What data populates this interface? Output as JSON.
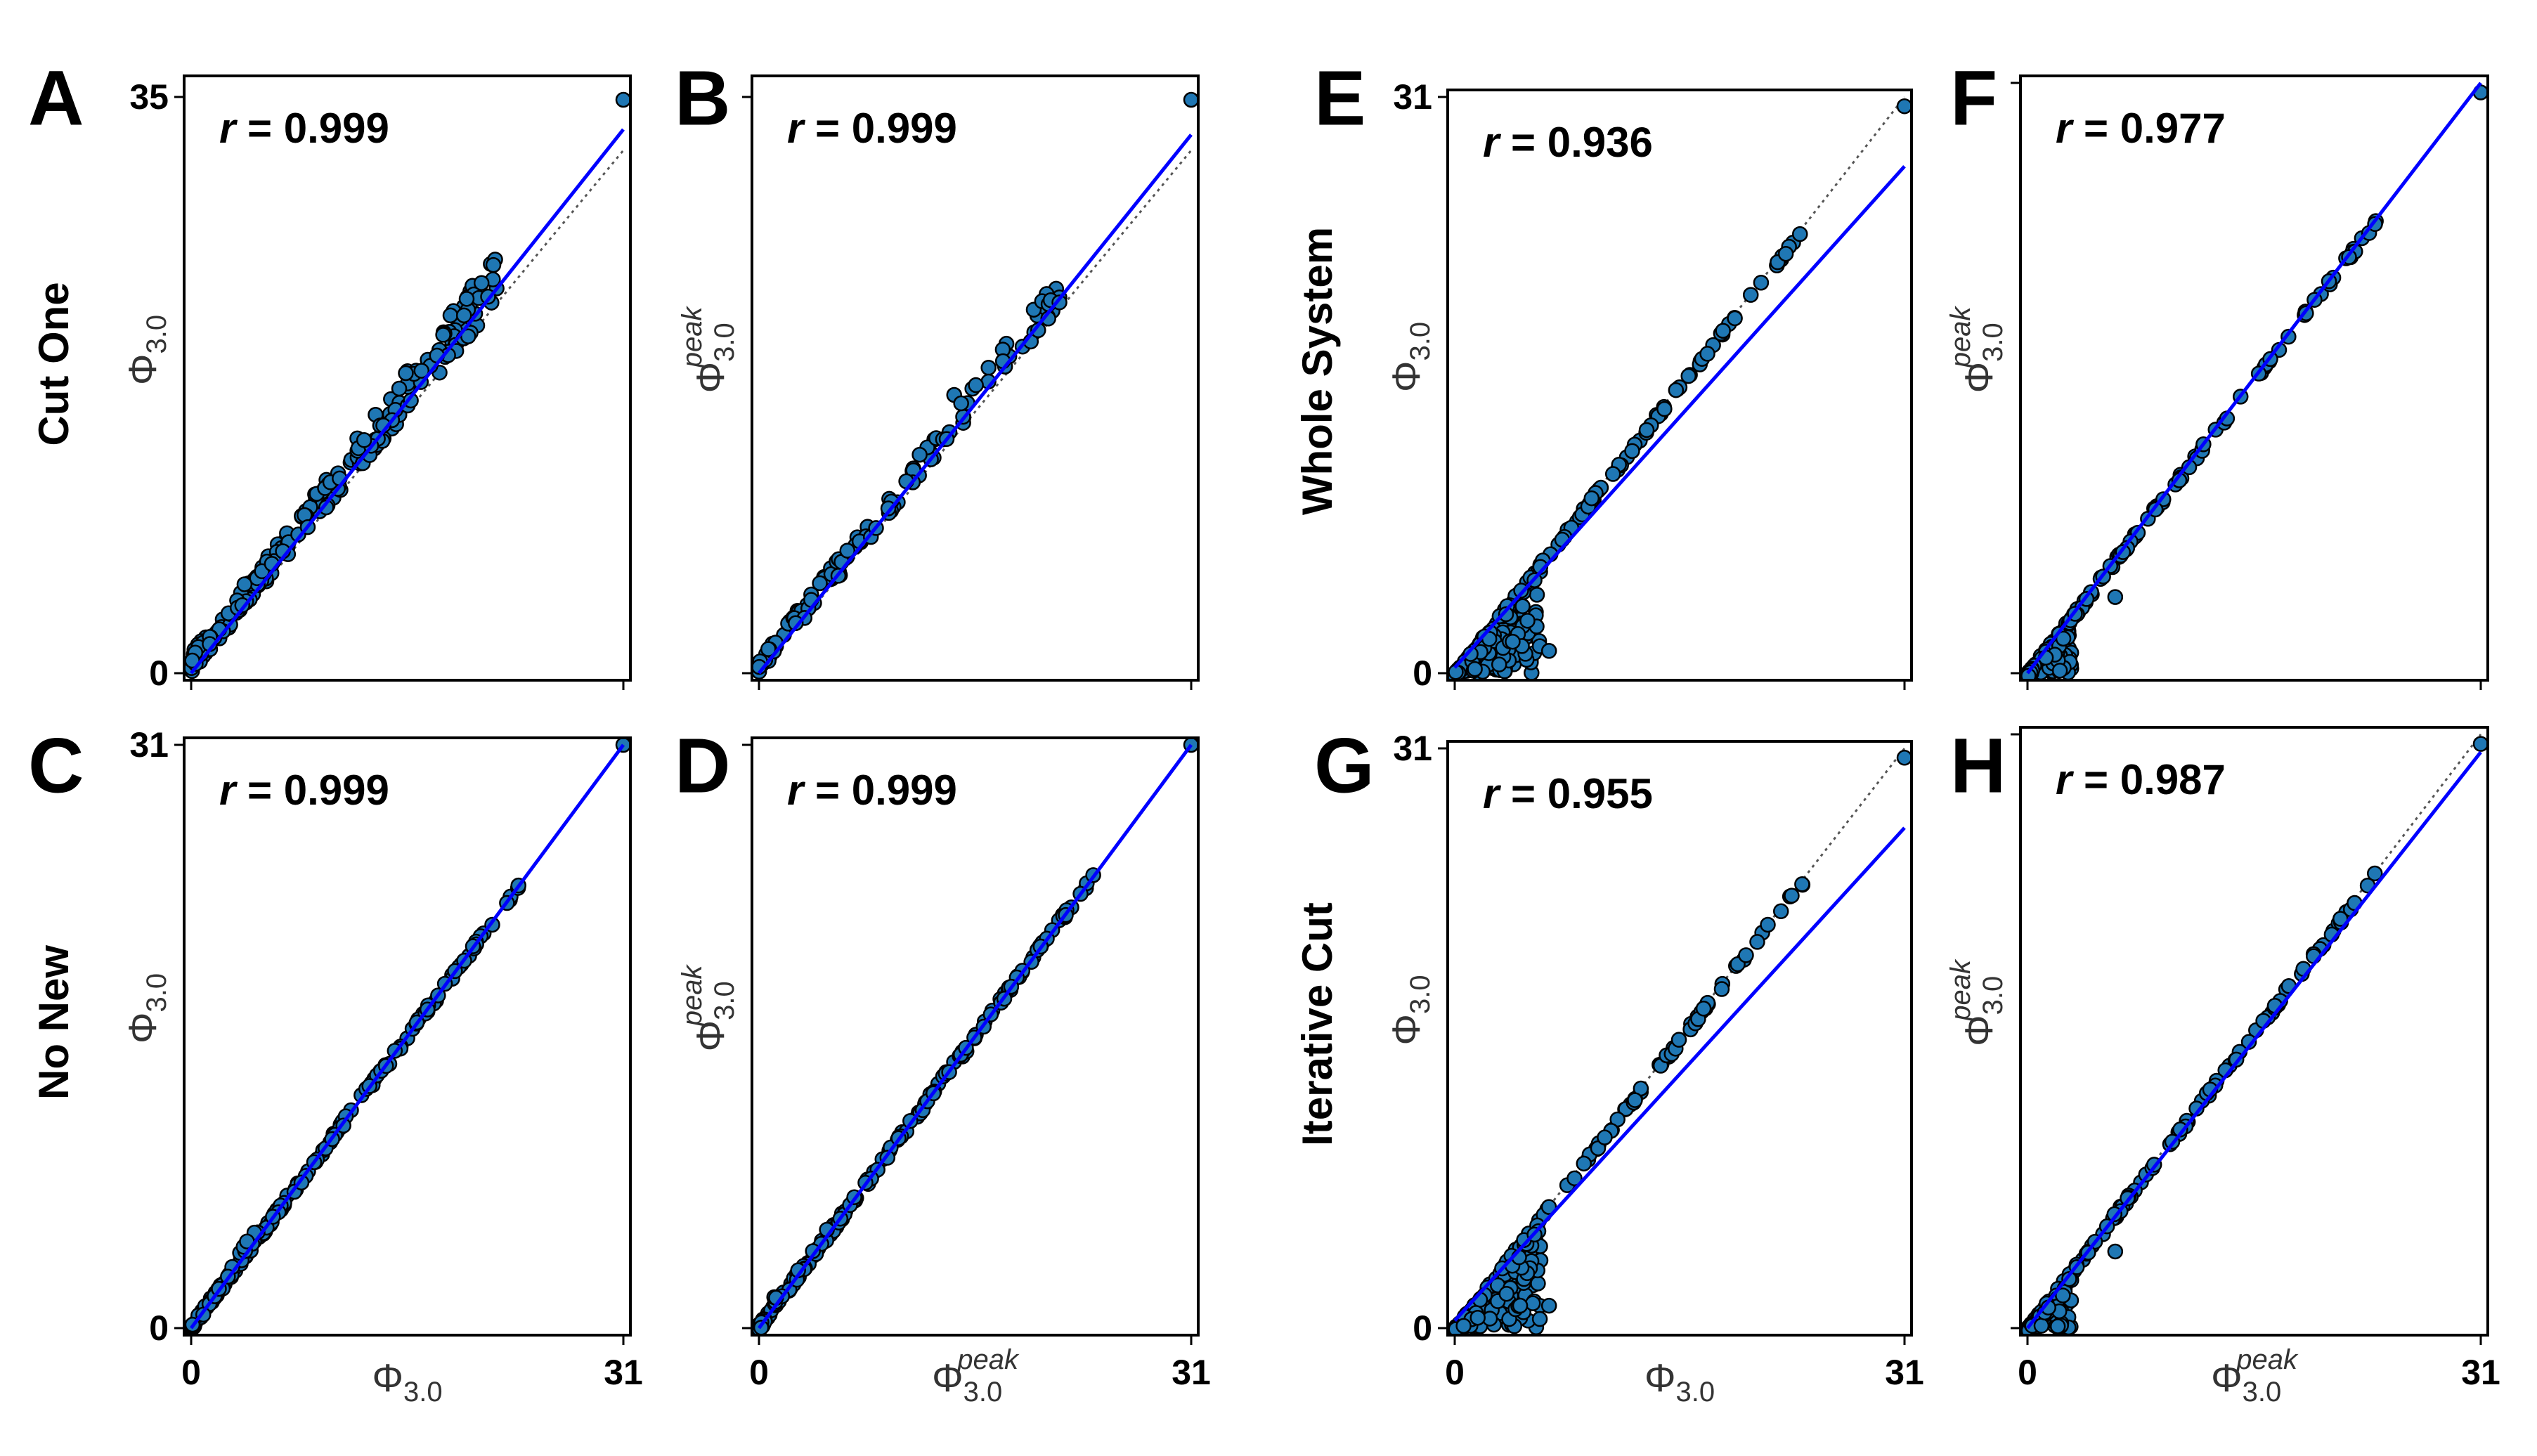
{
  "colors": {
    "marker": "#1f77b4",
    "marker_edge": "#000000",
    "fit_line": "#0000ff",
    "identity_line": "#555555"
  },
  "chart_data": [
    {
      "panel": "A",
      "type": "scatter",
      "r_label": "r = 0.999",
      "xlim": [
        0,
        31
      ],
      "ylim": [
        0,
        35
      ],
      "y_ticks": [
        "0",
        "35"
      ],
      "x_ticks": [
        "",
        ""
      ],
      "x_label": "",
      "y_label": "Φ3.0",
      "row_label": "Cut One",
      "scatter_style": "above",
      "fit": {
        "slope": 1.04,
        "intercept": 0
      },
      "outlier": [
        31,
        34
      ],
      "max_x": 31
    },
    {
      "panel": "B",
      "type": "scatter",
      "r_label": "r = 0.999",
      "xlim": [
        0,
        31
      ],
      "ylim": [
        0,
        35
      ],
      "y_ticks": [
        "",
        ""
      ],
      "x_ticks": [
        "",
        ""
      ],
      "x_label": "",
      "y_label": "Φ3.0 peak",
      "row_label": "",
      "scatter_style": "above_light",
      "fit": {
        "slope": 1.03,
        "intercept": 0
      },
      "outlier": [
        31,
        34
      ],
      "max_x": 31
    },
    {
      "panel": "C",
      "type": "scatter",
      "r_label": "r = 0.999",
      "xlim": [
        0,
        31
      ],
      "ylim": [
        0,
        31
      ],
      "y_ticks": [
        "0",
        "31"
      ],
      "x_ticks": [
        "0",
        "31"
      ],
      "x_label": "Φ3.0",
      "y_label": "Φ3.0",
      "row_label": "No New",
      "scatter_style": "line",
      "fit": {
        "slope": 1.0,
        "intercept": 0
      },
      "outlier": [
        31,
        31
      ],
      "max_x": 31
    },
    {
      "panel": "D",
      "type": "scatter",
      "r_label": "r = 0.999",
      "xlim": [
        0,
        31
      ],
      "ylim": [
        0,
        31
      ],
      "y_ticks": [
        "",
        ""
      ],
      "x_ticks": [
        "0",
        "31"
      ],
      "x_label": "Φ3.0 peak",
      "y_label": "Φ3.0 peak",
      "row_label": "",
      "scatter_style": "line",
      "fit": {
        "slope": 1.0,
        "intercept": 0
      },
      "outlier": [
        31,
        31
      ],
      "max_x": 31
    },
    {
      "panel": "E",
      "type": "scatter",
      "r_label": "r = 0.936",
      "xlim": [
        0,
        31
      ],
      "ylim": [
        0,
        31
      ],
      "y_ticks": [
        "0",
        "31"
      ],
      "x_ticks": [
        "",
        ""
      ],
      "x_label": "",
      "y_label": "Φ3.0",
      "row_label": "Whole System",
      "scatter_style": "below",
      "fit": {
        "slope": 0.87,
        "intercept": 0.3
      },
      "outlier": [
        31,
        30.5
      ],
      "max_x": 31
    },
    {
      "panel": "F",
      "type": "scatter",
      "r_label": "r = 0.977",
      "xlim": [
        0,
        31
      ],
      "ylim": [
        0,
        31
      ],
      "y_ticks": [
        "",
        ""
      ],
      "x_ticks": [
        "",
        ""
      ],
      "x_label": "",
      "y_label": "Φ3.0 peak",
      "row_label": "",
      "scatter_style": "below_light",
      "fit": {
        "slope": 1.0,
        "intercept": 0
      },
      "outlier": [
        31,
        30.5
      ],
      "max_x": 31
    },
    {
      "panel": "G",
      "type": "scatter",
      "r_label": "r = 0.955",
      "xlim": [
        0,
        31
      ],
      "ylim": [
        0,
        31
      ],
      "y_ticks": [
        "0",
        "31"
      ],
      "x_ticks": [
        "0",
        "31"
      ],
      "x_label": "Φ3.0",
      "y_label": "Φ3.0",
      "row_label": "Iterative Cut",
      "scatter_style": "below",
      "fit": {
        "slope": 0.85,
        "intercept": 0.4
      },
      "outlier": [
        31,
        30.5
      ],
      "max_x": 31
    },
    {
      "panel": "H",
      "type": "scatter",
      "r_label": "r = 0.987",
      "xlim": [
        0,
        31
      ],
      "ylim": [
        0,
        31
      ],
      "y_ticks": [
        "",
        ""
      ],
      "x_ticks": [
        "0",
        "31"
      ],
      "x_label": "Φ3.0 peak",
      "y_label": "Φ3.0 peak",
      "row_label": "",
      "scatter_style": "below_light",
      "fit": {
        "slope": 0.97,
        "intercept": 0
      },
      "outlier": [
        31,
        30.5
      ],
      "max_x": 31
    }
  ]
}
